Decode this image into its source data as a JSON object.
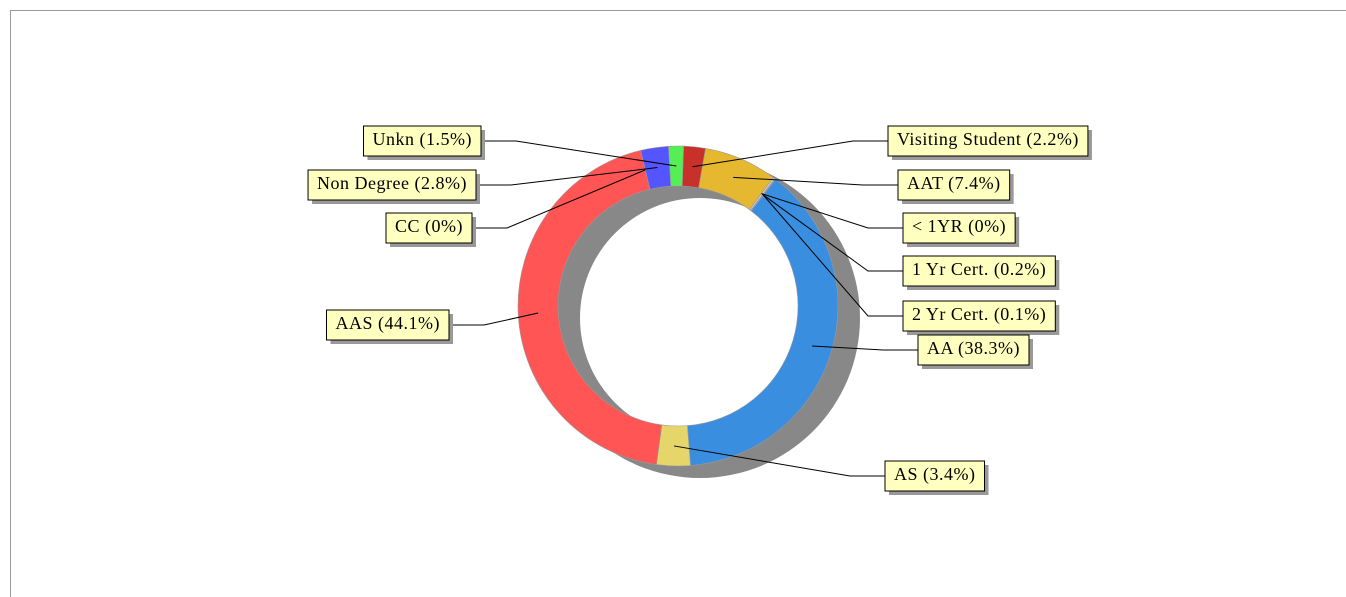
{
  "chart_data": {
    "type": "donut",
    "value_labels": [
      "Visiting Student (2.2%)",
      "AAT (7.4%)",
      "< 1YR (0%)",
      "1 Yr Cert. (0.2%)",
      "2 Yr Cert. (0.1%)",
      "AA (38.3%)",
      "AS (3.4%)",
      "AAS (44.1%)",
      "CC (0%)",
      "Non Degree (2.8%)",
      "Unkn (1.5%)"
    ],
    "values": [
      2.2,
      7.4,
      0,
      0.2,
      0.1,
      38.3,
      3.4,
      44.1,
      0,
      2.8,
      1.5
    ],
    "colors": [
      "#c8302a",
      "#e6b830",
      "#333333",
      "#cccccc",
      "#999999",
      "#3a8ee0",
      "#e6d66a",
      "#ff5555",
      "#888888",
      "#5555ff",
      "#55ee55"
    ]
  }
}
